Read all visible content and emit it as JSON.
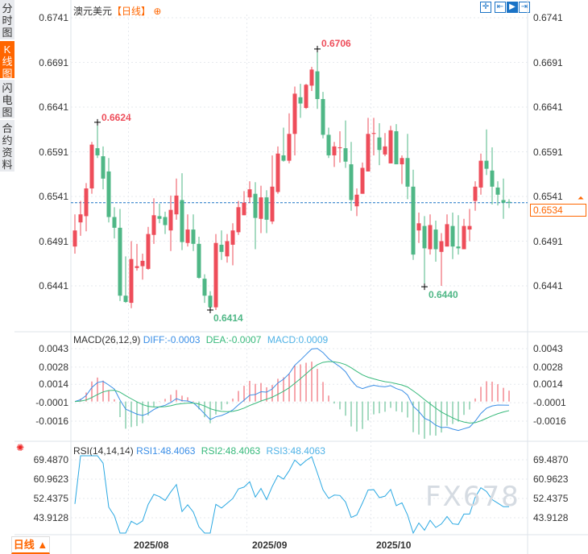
{
  "sidebar": {
    "tabs": [
      {
        "label": "分时图",
        "active": false
      },
      {
        "label": "K线图",
        "active": true
      },
      {
        "label": "闪电图",
        "active": false
      },
      {
        "label": "合约资料",
        "active": false
      }
    ]
  },
  "header": {
    "symbol": "澳元美元",
    "period": "【日线】",
    "add_icon": "circle-plus-icon"
  },
  "toolbar": {
    "icons": [
      "crosshair-icon",
      "fit-range-icon",
      "play-right-icon",
      "goto-end-icon"
    ],
    "active_index": 2
  },
  "colors": {
    "up": "#ee4d5a",
    "down": "#4fb786",
    "diff": "#3a8ee6",
    "dea": "#37b97b",
    "macd_label": "#4fb2e6",
    "rsi": "#2aa8e2",
    "accent": "#ff6600",
    "last_price_line": "#1a73c6"
  },
  "price_axis": {
    "ticks": [
      "0.6741",
      "0.6691",
      "0.6641",
      "0.6591",
      "0.6541",
      "0.6491",
      "0.6441"
    ],
    "range": [
      0.6441,
      0.6741
    ]
  },
  "last_price": "0.6534",
  "annotations": {
    "high": "0.6706",
    "left_high": "0.6624",
    "low_left": "0.6414",
    "low_right": "0.6440"
  },
  "macd": {
    "title": "MACD(26,12,9)",
    "diff": "DIFF:-0.0003",
    "dea": "DEA:-0.0007",
    "macd": "MACD:0.0009",
    "ticks": [
      "0.0043",
      "0.0028",
      "0.0014",
      "-0.0001",
      "-0.0016"
    ],
    "range": [
      -0.0016,
      0.0043
    ]
  },
  "rsi": {
    "title": "RSI(14,14,14)",
    "rsi1": "RSI1:48.4063",
    "rsi2": "RSI2:48.4063",
    "rsi3": "RSI3:48.4063",
    "ticks": [
      "69.4870",
      "60.9623",
      "52.4375",
      "43.9128"
    ],
    "range": [
      43.9128,
      69.487
    ]
  },
  "dates": [
    "2025/08",
    "2025/09",
    "2025/10"
  ],
  "period_button": "日线",
  "watermark": "FX678",
  "chart_data": {
    "type": "candlestick",
    "title": "澳元美元【日线】",
    "ylim": [
      0.6441,
      0.6741
    ],
    "month_starts": {
      "2025/08": 10,
      "2025/09": 31,
      "2025/10": 53
    },
    "ohlc": [
      [
        0.6485,
        0.6521,
        0.6477,
        0.6503
      ],
      [
        0.6512,
        0.6536,
        0.6497,
        0.6521
      ],
      [
        0.6519,
        0.6556,
        0.6502,
        0.655
      ],
      [
        0.655,
        0.6602,
        0.6544,
        0.6599
      ],
      [
        0.6595,
        0.6624,
        0.6584,
        0.6587
      ],
      [
        0.6586,
        0.6597,
        0.6549,
        0.6561
      ],
      [
        0.6569,
        0.6584,
        0.6512,
        0.6518
      ],
      [
        0.6518,
        0.6529,
        0.6494,
        0.6506
      ],
      [
        0.6506,
        0.6527,
        0.6424,
        0.643
      ],
      [
        0.643,
        0.6474,
        0.6422,
        0.6423
      ],
      [
        0.6422,
        0.6491,
        0.6416,
        0.6471
      ],
      [
        0.6461,
        0.6488,
        0.6458,
        0.6463
      ],
      [
        0.6463,
        0.6477,
        0.6448,
        0.6469
      ],
      [
        0.646,
        0.6507,
        0.6459,
        0.6499
      ],
      [
        0.6498,
        0.6539,
        0.6488,
        0.652
      ],
      [
        0.6519,
        0.6533,
        0.6511,
        0.6516
      ],
      [
        0.6518,
        0.6524,
        0.6499,
        0.6509
      ],
      [
        0.6503,
        0.6542,
        0.648,
        0.6526
      ],
      [
        0.6521,
        0.6561,
        0.6515,
        0.6542
      ],
      [
        0.6537,
        0.6567,
        0.6481,
        0.649
      ],
      [
        0.6489,
        0.6521,
        0.6485,
        0.6504
      ],
      [
        0.6504,
        0.6521,
        0.648,
        0.6488
      ],
      [
        0.6488,
        0.6496,
        0.6449,
        0.645
      ],
      [
        0.6449,
        0.6454,
        0.6422,
        0.643
      ],
      [
        0.643,
        0.6435,
        0.6414,
        0.6417
      ],
      [
        0.6417,
        0.6499,
        0.6414,
        0.6489
      ],
      [
        0.6487,
        0.6503,
        0.647,
        0.6479
      ],
      [
        0.6474,
        0.6499,
        0.6467,
        0.6491
      ],
      [
        0.6487,
        0.6511,
        0.6464,
        0.6503
      ],
      [
        0.6501,
        0.6536,
        0.6498,
        0.6529
      ],
      [
        0.652,
        0.6547,
        0.652,
        0.6534
      ],
      [
        0.654,
        0.6558,
        0.6534,
        0.6549
      ],
      [
        0.6544,
        0.6557,
        0.6482,
        0.6517
      ],
      [
        0.6516,
        0.6553,
        0.65,
        0.654
      ],
      [
        0.654,
        0.6548,
        0.65,
        0.6515
      ],
      [
        0.6513,
        0.6587,
        0.651,
        0.6552
      ],
      [
        0.6546,
        0.6597,
        0.6544,
        0.6589
      ],
      [
        0.6587,
        0.6618,
        0.658,
        0.6581
      ],
      [
        0.6581,
        0.6634,
        0.6578,
        0.6611
      ],
      [
        0.6611,
        0.6664,
        0.6587,
        0.6656
      ],
      [
        0.6652,
        0.6667,
        0.6629,
        0.6645
      ],
      [
        0.664,
        0.6667,
        0.6639,
        0.6666
      ],
      [
        0.6665,
        0.6686,
        0.6659,
        0.6683
      ],
      [
        0.6681,
        0.6706,
        0.6639,
        0.665
      ],
      [
        0.665,
        0.6658,
        0.6606,
        0.661
      ],
      [
        0.661,
        0.6618,
        0.6584,
        0.6587
      ],
      [
        0.6587,
        0.6602,
        0.6574,
        0.6597
      ],
      [
        0.6595,
        0.6614,
        0.6579,
        0.6596
      ],
      [
        0.6595,
        0.6626,
        0.6573,
        0.658
      ],
      [
        0.6577,
        0.6602,
        0.6525,
        0.6537
      ],
      [
        0.653,
        0.655,
        0.6519,
        0.6543
      ],
      [
        0.6544,
        0.6579,
        0.6544,
        0.6573
      ],
      [
        0.6569,
        0.6629,
        0.6569,
        0.6611
      ],
      [
        0.6611,
        0.6629,
        0.6587,
        0.6612
      ],
      [
        0.6607,
        0.6623,
        0.6576,
        0.6593
      ],
      [
        0.6588,
        0.6612,
        0.6586,
        0.6597
      ],
      [
        0.6578,
        0.662,
        0.6578,
        0.6615
      ],
      [
        0.6614,
        0.6622,
        0.6577,
        0.6577
      ],
      [
        0.6577,
        0.6587,
        0.6555,
        0.6584
      ],
      [
        0.6584,
        0.6611,
        0.6538,
        0.6552
      ],
      [
        0.6552,
        0.6571,
        0.647,
        0.6476
      ],
      [
        0.6503,
        0.6523,
        0.6489,
        0.6511
      ],
      [
        0.6508,
        0.6519,
        0.644,
        0.6483
      ],
      [
        0.6482,
        0.6521,
        0.6476,
        0.6509
      ],
      [
        0.6504,
        0.6514,
        0.6468,
        0.6482
      ],
      [
        0.6479,
        0.65,
        0.6441,
        0.6491
      ],
      [
        0.6485,
        0.6521,
        0.6485,
        0.651
      ],
      [
        0.6508,
        0.6523,
        0.6471,
        0.6485
      ],
      [
        0.6485,
        0.652,
        0.6476,
        0.6483
      ],
      [
        0.6482,
        0.6516,
        0.6482,
        0.6508
      ],
      [
        0.6504,
        0.6527,
        0.6491,
        0.6508
      ],
      [
        0.6536,
        0.6558,
        0.6525,
        0.6552
      ],
      [
        0.6551,
        0.6589,
        0.6543,
        0.6581
      ],
      [
        0.6581,
        0.6616,
        0.6565,
        0.6572
      ],
      [
        0.657,
        0.6596,
        0.6532,
        0.6552
      ],
      [
        0.6551,
        0.6558,
        0.6531,
        0.6543
      ],
      [
        0.6537,
        0.6561,
        0.6516,
        0.6534
      ],
      [
        0.6535,
        0.6538,
        0.6528,
        0.6534
      ]
    ],
    "indicators": {
      "macd": {
        "fast": 12,
        "slow": 26,
        "signal": 9
      },
      "rsi": {
        "periods": [
          14,
          14,
          14
        ]
      }
    }
  }
}
